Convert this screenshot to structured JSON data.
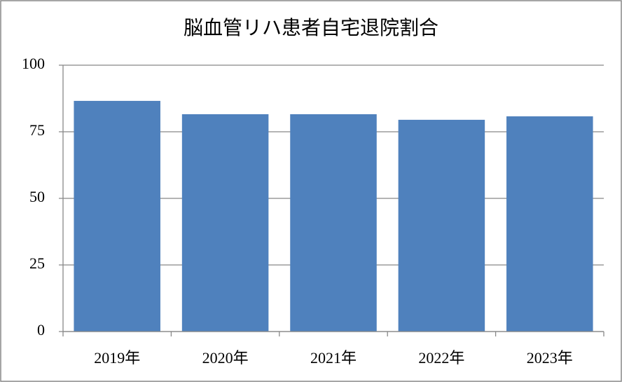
{
  "chart_data": {
    "type": "bar",
    "title": "脳血管リハ患者自宅退院割合",
    "categories": [
      "2019年",
      "2020年",
      "2021年",
      "2022年",
      "2023年"
    ],
    "values": [
      86.6,
      81.6,
      81.6,
      79.5,
      80.8
    ],
    "color": "#4f81bd",
    "ylim": [
      0,
      100
    ],
    "yticks": [
      0,
      25,
      50,
      75,
      100
    ],
    "grid": true
  }
}
